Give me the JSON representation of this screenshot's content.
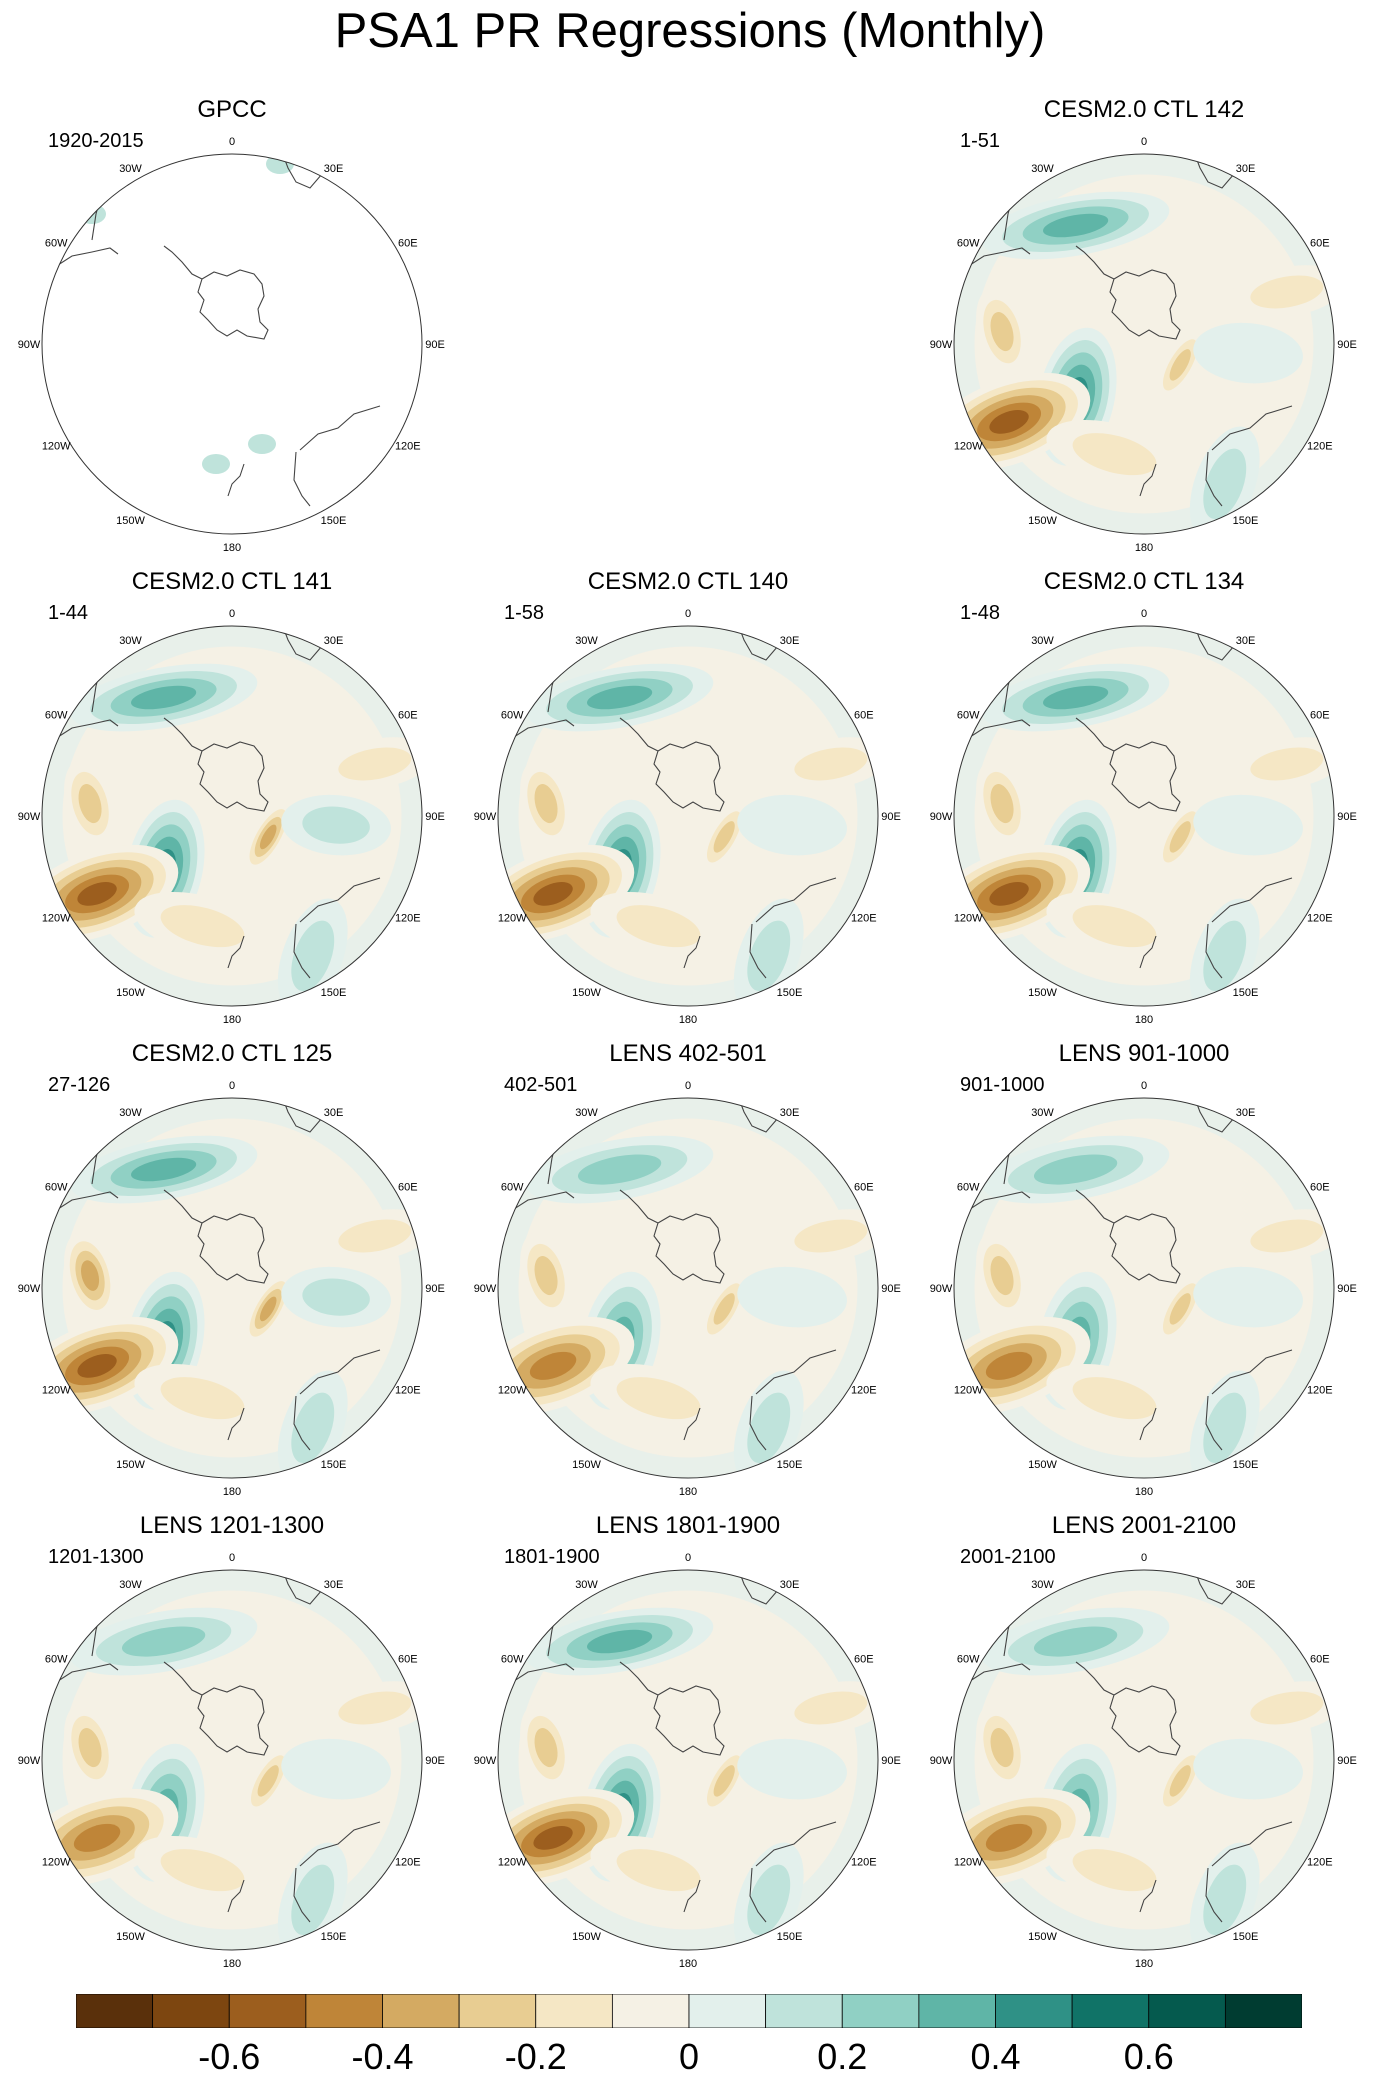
{
  "title": "PSA1 PR Regressions (Monthly)",
  "longitude_labels": [
    "0",
    "30E",
    "60E",
    "90E",
    "120E",
    "150E",
    "180",
    "150W",
    "120W",
    "90W",
    "60W",
    "30W"
  ],
  "panels": [
    {
      "title": "GPCC",
      "period": "1920-2015",
      "row": 0,
      "col": 0,
      "field": "observed"
    },
    {
      "title": "CESM2.0 CTL 142",
      "period": "1-51",
      "row": 0,
      "col": 2,
      "field": "model",
      "strength": 1.0
    },
    {
      "title": "CESM2.0 CTL 141",
      "period": "1-44",
      "row": 1,
      "col": 0,
      "field": "model",
      "strength": 1.05
    },
    {
      "title": "CESM2.0 CTL 140",
      "period": "1-58",
      "row": 1,
      "col": 1,
      "field": "model",
      "strength": 0.95
    },
    {
      "title": "CESM2.0 CTL 134",
      "period": "1-48",
      "row": 1,
      "col": 2,
      "field": "model",
      "strength": 0.95
    },
    {
      "title": "CESM2.0 CTL 125",
      "period": "27-126",
      "row": 2,
      "col": 0,
      "field": "model",
      "strength": 1.1
    },
    {
      "title": "LENS 402-501",
      "period": "402-501",
      "row": 2,
      "col": 1,
      "field": "model",
      "strength": 0.9
    },
    {
      "title": "LENS 901-1000",
      "period": "901-1000",
      "row": 2,
      "col": 2,
      "field": "model",
      "strength": 0.9
    },
    {
      "title": "LENS 1201-1300",
      "period": "1201-1300",
      "row": 3,
      "col": 0,
      "field": "model",
      "strength": 0.8
    },
    {
      "title": "LENS 1801-1900",
      "period": "1801-1900",
      "row": 3,
      "col": 1,
      "field": "model",
      "strength": 0.95
    },
    {
      "title": "LENS 2001-2100",
      "period": "2001-2100",
      "row": 3,
      "col": 2,
      "field": "model",
      "strength": 0.85
    }
  ],
  "colorbar": {
    "colors": [
      "#5a300b",
      "#7d4610",
      "#9c5e1e",
      "#bf8538",
      "#d4aa62",
      "#e8cd92",
      "#f5e7c5",
      "#f5f1e5",
      "#e3f0ec",
      "#bfe3db",
      "#90d0c4",
      "#5fb5a7",
      "#2f9186",
      "#107367",
      "#055a4e",
      "#003c31"
    ],
    "tick_labels": [
      "-0.6",
      "-0.4",
      "-0.2",
      "0",
      "0.2",
      "0.4",
      "0.6"
    ]
  }
}
